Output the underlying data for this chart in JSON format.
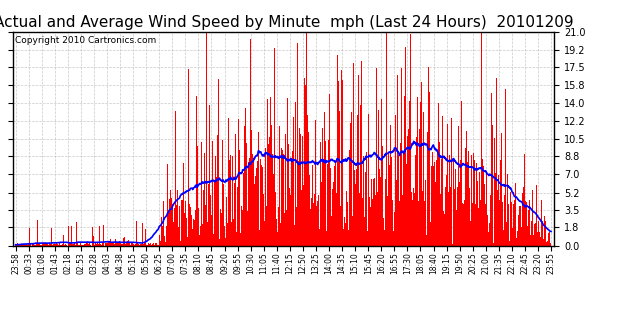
{
  "title": "Actual and Average Wind Speed by Minute  mph (Last 24 Hours)  20101209",
  "copyright": "Copyright 2010 Cartronics.com",
  "y_ticks": [
    0.0,
    1.8,
    3.5,
    5.2,
    7.0,
    8.8,
    10.5,
    12.2,
    14.0,
    15.8,
    17.5,
    19.2,
    21.0
  ],
  "y_max": 21.0,
  "y_min": 0.0,
  "bar_color": "#ff0000",
  "line_color": "#0000ff",
  "bg_color": "#ffffff",
  "grid_color": "#bbbbbb",
  "title_fontsize": 11,
  "copyright_fontsize": 6.5,
  "n_points": 1440,
  "x_labels": [
    "23:58",
    "00:33",
    "01:08",
    "01:43",
    "02:18",
    "02:53",
    "03:28",
    "04:03",
    "04:38",
    "05:15",
    "05:50",
    "06:25",
    "07:00",
    "07:35",
    "08:10",
    "08:45",
    "09:20",
    "09:55",
    "10:30",
    "11:05",
    "11:40",
    "12:15",
    "12:50",
    "13:25",
    "14:00",
    "14:35",
    "15:10",
    "15:45",
    "16:20",
    "16:55",
    "17:30",
    "18:05",
    "18:40",
    "19:15",
    "19:50",
    "20:25",
    "21:00",
    "21:35",
    "22:10",
    "22:45",
    "23:20",
    "23:55"
  ]
}
